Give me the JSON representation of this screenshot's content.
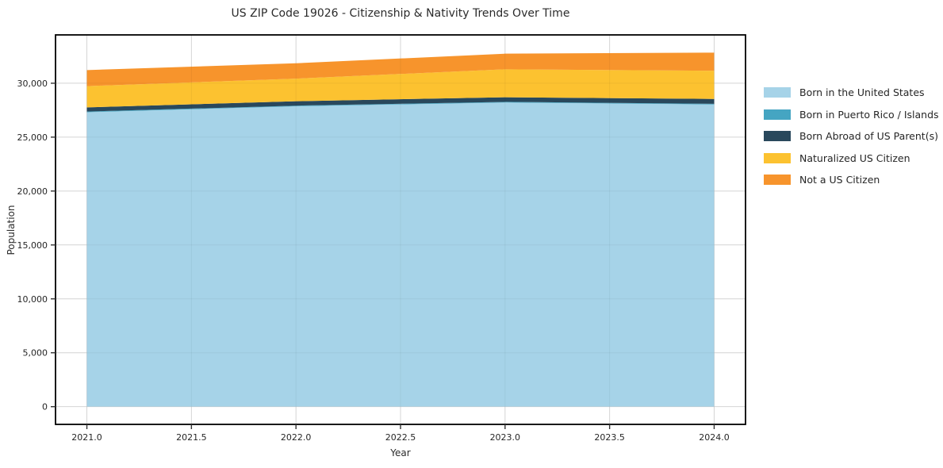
{
  "title": "US ZIP Code 19026 - Citizenship & Nativity Trends Over Time",
  "x_axis": {
    "label": "Year",
    "ticks": [
      {
        "value": 2021.0,
        "label": "2021.0"
      },
      {
        "value": 2021.5,
        "label": "2021.5"
      },
      {
        "value": 2022.0,
        "label": "2022.0"
      },
      {
        "value": 2022.5,
        "label": "2022.5"
      },
      {
        "value": 2023.0,
        "label": "2023.0"
      },
      {
        "value": 2023.5,
        "label": "2023.5"
      },
      {
        "value": 2024.0,
        "label": "2024.0"
      }
    ]
  },
  "y_axis": {
    "label": "Population",
    "ticks": [
      {
        "value": 0,
        "label": "0"
      },
      {
        "value": 5000,
        "label": "5,000"
      },
      {
        "value": 10000,
        "label": "10,000"
      },
      {
        "value": 15000,
        "label": "15,000"
      },
      {
        "value": 20000,
        "label": "20,000"
      },
      {
        "value": 25000,
        "label": "25,000"
      },
      {
        "value": 30000,
        "label": "30,000"
      }
    ]
  },
  "chart_data": {
    "type": "area",
    "stacked": true,
    "title": "US ZIP Code 19026 - Citizenship & Nativity Trends Over Time",
    "xlabel": "Year",
    "ylabel": "Population",
    "x": [
      2021,
      2022,
      2023,
      2024
    ],
    "series": [
      {
        "name": "Born in the United States",
        "color": "#A6D3E8",
        "values": [
          27310,
          27860,
          28210,
          28030
        ]
      },
      {
        "name": "Born in Puerto Rico / Islands",
        "color": "#45A5C2",
        "values": [
          60,
          60,
          60,
          60
        ]
      },
      {
        "name": "Born Abroad of US Parent(s)",
        "color": "#29485C",
        "values": [
          390,
          410,
          430,
          450
        ]
      },
      {
        "name": "Naturalized US Citizen",
        "color": "#FCC230",
        "values": [
          1970,
          2100,
          2590,
          2620
        ]
      },
      {
        "name": "Not a US Citizen",
        "color": "#F7942C",
        "values": [
          1490,
          1420,
          1450,
          1680
        ]
      }
    ],
    "totals": [
      31220,
      31850,
      32740,
      32840
    ],
    "xlim": [
      2020.85,
      2024.15
    ],
    "ylim": [
      -1642,
      34482
    ],
    "grid": true,
    "legend_position": "right"
  }
}
